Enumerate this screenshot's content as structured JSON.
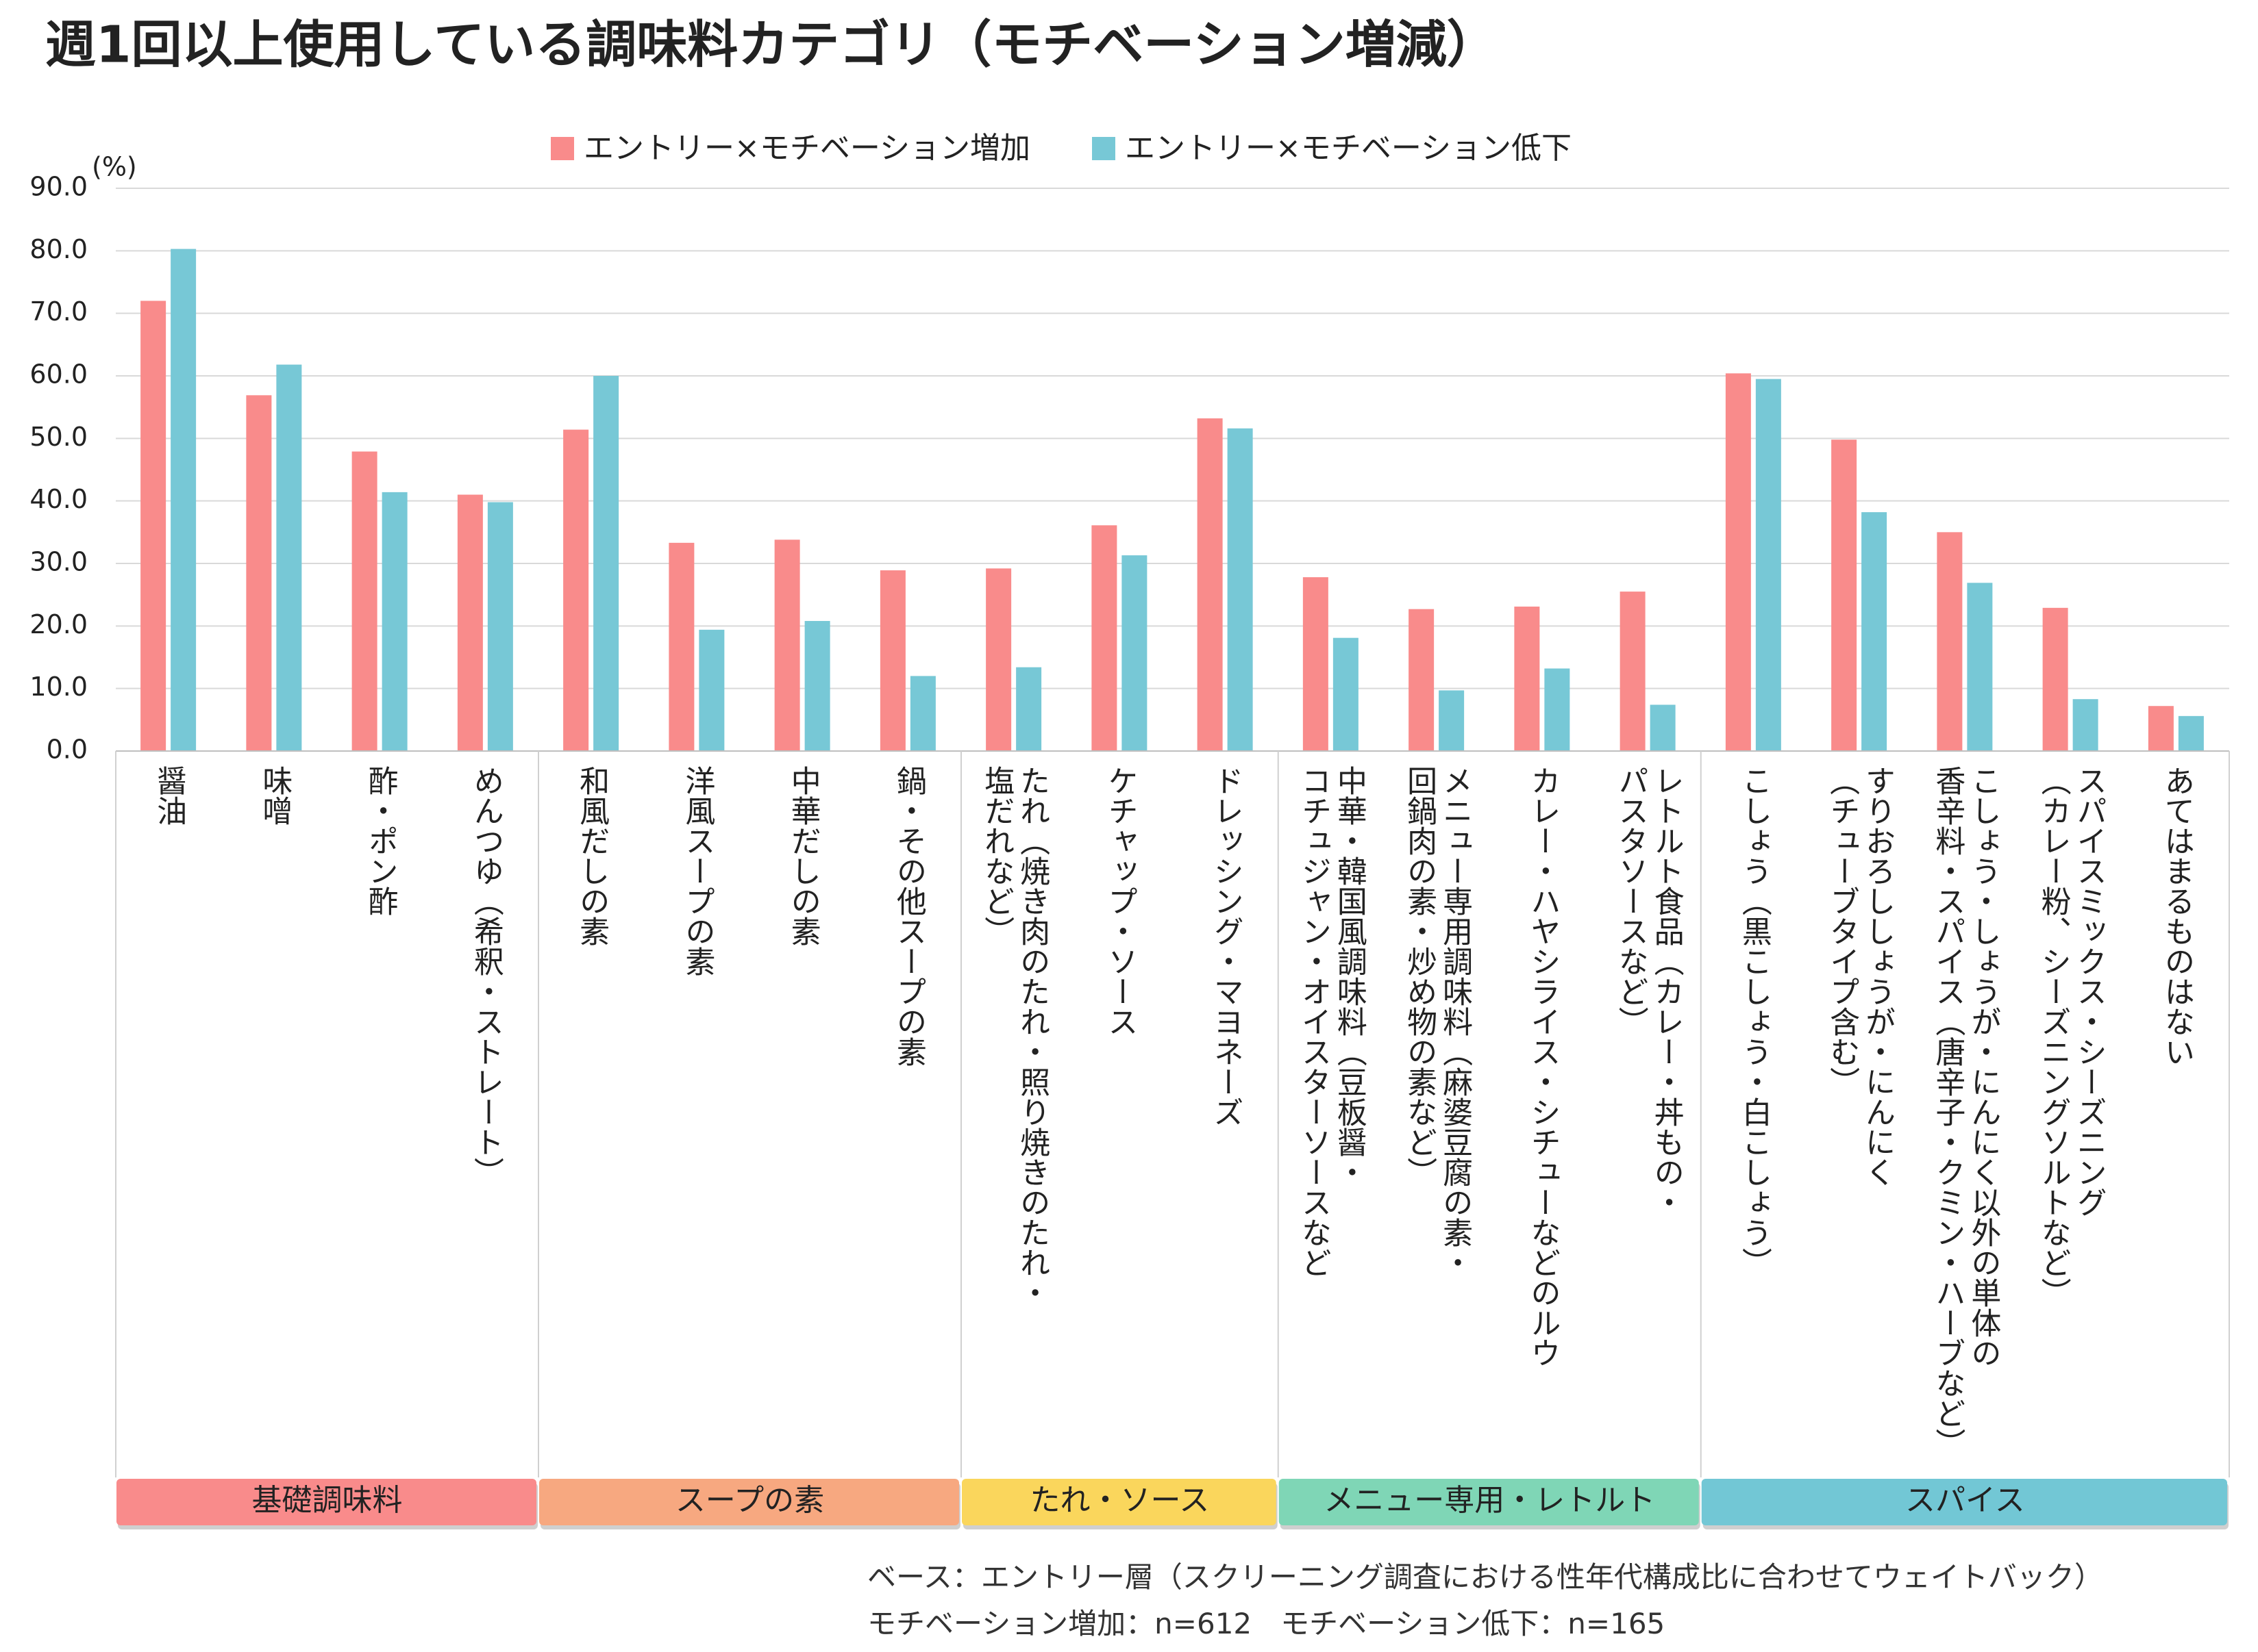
{
  "chart_data": {
    "type": "bar",
    "title": "週1回以上使用している調味料カテゴリ（モチベーション増減）",
    "y_unit": "(%)",
    "ylim": [
      0,
      90
    ],
    "yticks": [
      {
        "value": 0,
        "label": "0.0"
      },
      {
        "value": 10,
        "label": "10.0"
      },
      {
        "value": 20,
        "label": "20.0"
      },
      {
        "value": 30,
        "label": "30.0"
      },
      {
        "value": 40,
        "label": "40.0"
      },
      {
        "value": 50,
        "label": "50.0"
      },
      {
        "value": 60,
        "label": "60.0"
      },
      {
        "value": 70,
        "label": "70.0"
      },
      {
        "value": 80,
        "label": "80.0"
      },
      {
        "value": 90,
        "label": "90.0"
      }
    ],
    "grid": true,
    "categories": [
      "醤油",
      "味噌",
      "酢・ポン酢",
      "めんつゆ（希釈・ストレート）",
      "和風だしの素",
      "洋風スープの素",
      "中華だしの素",
      "鍋・その他スープの素",
      "たれ（焼き肉のたれ・照り焼きのたれ・\n塩だれなど）",
      "ケチャップ・ソース",
      "ドレッシング・マヨネーズ",
      "中華・韓国風調味料（豆板醤・\nコチュジャン・オイスターソースなど",
      "メニュー専用調味料（麻婆豆腐の素・\n回鍋肉の素・炒め物の素など）",
      "カレー・ハヤシライス・シチューなどのルウ",
      "レトルト食品（カレー・丼もの・\nパスタソースなど）",
      "こしょう（黒こしょう・白こしょう）",
      "すりおろししょうが・にんにく\n（チューブタイプ含む）",
      "こしょう・しょうが・にんにく以外の単体の\n香辛料・スパイス（唐辛子・クミン・ハーブなど）",
      "スパイスミックス・シーズニング\n（カレー粉、シーズニングソルトなど）",
      "あてはまるものはない"
    ],
    "series": [
      {
        "name": "エントリー×モチベーション増加",
        "color": "#f98b8b",
        "values": [
          72.0,
          56.9,
          47.9,
          41.0,
          51.4,
          33.3,
          33.8,
          28.9,
          29.2,
          36.1,
          53.2,
          27.8,
          22.7,
          23.1,
          25.5,
          60.4,
          49.8,
          35.0,
          22.9,
          7.2
        ]
      },
      {
        "name": "エントリー×モチベーション低下",
        "color": "#77c8d6",
        "values": [
          80.3,
          61.8,
          41.4,
          39.8,
          60.0,
          19.4,
          20.8,
          12.0,
          13.4,
          31.3,
          51.6,
          18.1,
          9.7,
          13.2,
          7.4,
          59.5,
          38.2,
          26.9,
          8.3,
          5.6
        ]
      }
    ],
    "groups": [
      {
        "label": "基礎調味料",
        "color": "#f98b8b",
        "span": 4
      },
      {
        "label": "スープの素",
        "color": "#f7a880",
        "span": 4
      },
      {
        "label": "たれ・ソース",
        "color": "#fad65c",
        "span": 3
      },
      {
        "label": "メニュー専用・レトルト",
        "color": "#7fd6b6",
        "span": 4
      },
      {
        "label": "スパイス",
        "color": "#72c7d5",
        "span": 5
      }
    ],
    "notes": [
      "ベース：エントリー層（スクリーニング調査における性年代構成比に合わせてウェイトバック）",
      "モチベーション増加：n=612　モチベーション低下：n=165"
    ]
  }
}
